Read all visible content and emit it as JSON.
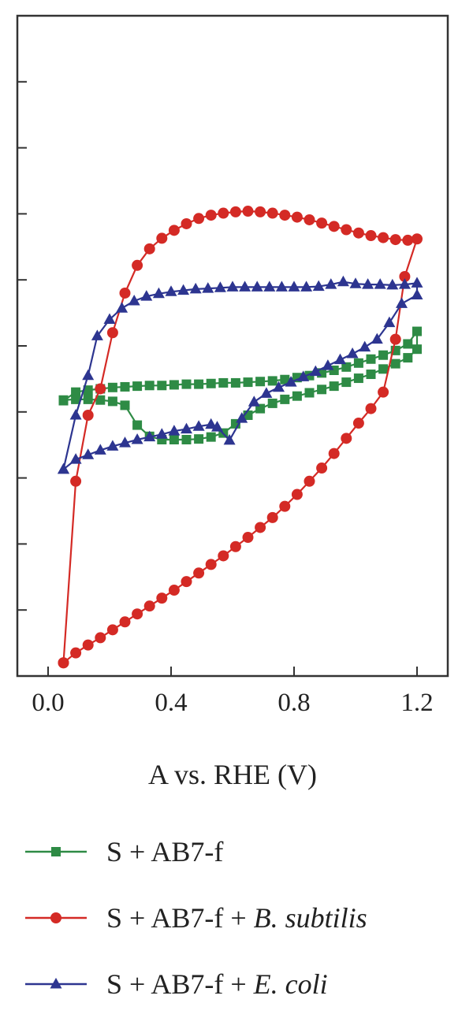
{
  "chart_data": {
    "type": "line",
    "title": "",
    "xlabel": "A vs. RHE (V)",
    "ylabel": "",
    "xlim": [
      -0.1,
      1.3
    ],
    "ylim": [
      0,
      10
    ],
    "xticks": [
      0.0,
      0.4,
      0.8,
      1.2
    ],
    "xtick_labels": [
      "0.0",
      "0.4",
      "0.8",
      "1.2"
    ],
    "yticks": [
      1,
      2,
      3,
      4,
      5,
      6,
      7,
      8,
      9
    ],
    "ytick_labels_visible": false,
    "grid": false,
    "legend_position": "bottom",
    "series": [
      {
        "name": "S + AB7-f",
        "name_parts": [
          {
            "text": "S + AB7-f",
            "italic": false
          }
        ],
        "color": "#2e8b45",
        "marker": "square",
        "points": [
          [
            0.05,
            4.17
          ],
          [
            0.09,
            4.3
          ],
          [
            0.13,
            4.33
          ],
          [
            0.17,
            4.35
          ],
          [
            0.21,
            4.37
          ],
          [
            0.25,
            4.38
          ],
          [
            0.29,
            4.39
          ],
          [
            0.33,
            4.4
          ],
          [
            0.37,
            4.4
          ],
          [
            0.41,
            4.41
          ],
          [
            0.45,
            4.42
          ],
          [
            0.49,
            4.42
          ],
          [
            0.53,
            4.43
          ],
          [
            0.57,
            4.44
          ],
          [
            0.61,
            4.44
          ],
          [
            0.65,
            4.45
          ],
          [
            0.69,
            4.46
          ],
          [
            0.73,
            4.47
          ],
          [
            0.77,
            4.49
          ],
          [
            0.81,
            4.52
          ],
          [
            0.85,
            4.55
          ],
          [
            0.89,
            4.59
          ],
          [
            0.93,
            4.63
          ],
          [
            0.97,
            4.68
          ],
          [
            1.01,
            4.74
          ],
          [
            1.05,
            4.8
          ],
          [
            1.09,
            4.86
          ],
          [
            1.13,
            4.93
          ],
          [
            1.17,
            5.03
          ],
          [
            1.2,
            5.22
          ],
          [
            1.2,
            4.95
          ],
          [
            1.17,
            4.82
          ],
          [
            1.13,
            4.73
          ],
          [
            1.09,
            4.65
          ],
          [
            1.05,
            4.57
          ],
          [
            1.01,
            4.51
          ],
          [
            0.97,
            4.45
          ],
          [
            0.93,
            4.39
          ],
          [
            0.89,
            4.34
          ],
          [
            0.85,
            4.29
          ],
          [
            0.81,
            4.24
          ],
          [
            0.77,
            4.19
          ],
          [
            0.73,
            4.13
          ],
          [
            0.69,
            4.05
          ],
          [
            0.65,
            3.95
          ],
          [
            0.61,
            3.82
          ],
          [
            0.57,
            3.68
          ],
          [
            0.53,
            3.62
          ],
          [
            0.49,
            3.59
          ],
          [
            0.45,
            3.58
          ],
          [
            0.41,
            3.58
          ],
          [
            0.37,
            3.58
          ],
          [
            0.33,
            3.63
          ],
          [
            0.29,
            3.8
          ],
          [
            0.25,
            4.1
          ],
          [
            0.21,
            4.16
          ],
          [
            0.17,
            4.18
          ],
          [
            0.13,
            4.19
          ],
          [
            0.09,
            4.19
          ],
          [
            0.05,
            4.18
          ]
        ]
      },
      {
        "name": "S + AB7-f + B. subtilis",
        "name_parts": [
          {
            "text": "S + AB7-f + ",
            "italic": false
          },
          {
            "text": "B. subtilis",
            "italic": true
          }
        ],
        "color": "#d42a25",
        "marker": "circle",
        "points": [
          [
            0.05,
            0.2
          ],
          [
            0.09,
            0.35
          ],
          [
            0.13,
            0.47
          ],
          [
            0.17,
            0.58
          ],
          [
            0.21,
            0.7
          ],
          [
            0.25,
            0.82
          ],
          [
            0.29,
            0.94
          ],
          [
            0.33,
            1.06
          ],
          [
            0.37,
            1.18
          ],
          [
            0.41,
            1.3
          ],
          [
            0.45,
            1.43
          ],
          [
            0.49,
            1.56
          ],
          [
            0.53,
            1.69
          ],
          [
            0.57,
            1.82
          ],
          [
            0.61,
            1.96
          ],
          [
            0.65,
            2.1
          ],
          [
            0.69,
            2.25
          ],
          [
            0.73,
            2.4
          ],
          [
            0.77,
            2.57
          ],
          [
            0.81,
            2.75
          ],
          [
            0.85,
            2.95
          ],
          [
            0.89,
            3.15
          ],
          [
            0.93,
            3.37
          ],
          [
            0.97,
            3.6
          ],
          [
            1.01,
            3.83
          ],
          [
            1.05,
            4.05
          ],
          [
            1.09,
            4.3
          ],
          [
            1.13,
            5.1
          ],
          [
            1.16,
            6.05
          ],
          [
            1.2,
            6.62
          ],
          [
            1.17,
            6.6
          ],
          [
            1.13,
            6.61
          ],
          [
            1.09,
            6.64
          ],
          [
            1.05,
            6.67
          ],
          [
            1.01,
            6.71
          ],
          [
            0.97,
            6.76
          ],
          [
            0.93,
            6.81
          ],
          [
            0.89,
            6.86
          ],
          [
            0.85,
            6.91
          ],
          [
            0.81,
            6.95
          ],
          [
            0.77,
            6.98
          ],
          [
            0.73,
            7.01
          ],
          [
            0.69,
            7.03
          ],
          [
            0.65,
            7.04
          ],
          [
            0.61,
            7.03
          ],
          [
            0.57,
            7.01
          ],
          [
            0.53,
            6.98
          ],
          [
            0.49,
            6.93
          ],
          [
            0.45,
            6.85
          ],
          [
            0.41,
            6.75
          ],
          [
            0.37,
            6.63
          ],
          [
            0.33,
            6.47
          ],
          [
            0.29,
            6.22
          ],
          [
            0.25,
            5.8
          ],
          [
            0.21,
            5.2
          ],
          [
            0.17,
            4.35
          ],
          [
            0.13,
            3.95
          ],
          [
            0.09,
            2.95
          ],
          [
            0.05,
            0.2
          ]
        ]
      },
      {
        "name": "S + AB7-f + E. coli",
        "name_parts": [
          {
            "text": "S + AB7-f + ",
            "italic": false
          },
          {
            "text": "E. coli",
            "italic": true
          }
        ],
        "color": "#2d3590",
        "marker": "triangle",
        "points": [
          [
            0.05,
            3.13
          ],
          [
            0.09,
            3.28
          ],
          [
            0.13,
            3.35
          ],
          [
            0.17,
            3.42
          ],
          [
            0.21,
            3.48
          ],
          [
            0.25,
            3.53
          ],
          [
            0.29,
            3.58
          ],
          [
            0.33,
            3.62
          ],
          [
            0.37,
            3.66
          ],
          [
            0.41,
            3.71
          ],
          [
            0.45,
            3.74
          ],
          [
            0.49,
            3.78
          ],
          [
            0.53,
            3.81
          ],
          [
            0.55,
            3.77
          ],
          [
            0.59,
            3.57
          ],
          [
            0.63,
            3.9
          ],
          [
            0.67,
            4.15
          ],
          [
            0.71,
            4.28
          ],
          [
            0.75,
            4.37
          ],
          [
            0.79,
            4.45
          ],
          [
            0.83,
            4.53
          ],
          [
            0.87,
            4.61
          ],
          [
            0.91,
            4.7
          ],
          [
            0.95,
            4.79
          ],
          [
            0.99,
            4.88
          ],
          [
            1.03,
            4.98
          ],
          [
            1.07,
            5.1
          ],
          [
            1.11,
            5.35
          ],
          [
            1.15,
            5.64
          ],
          [
            1.2,
            5.77
          ],
          [
            1.2,
            5.95
          ],
          [
            1.16,
            5.93
          ],
          [
            1.12,
            5.92
          ],
          [
            1.08,
            5.93
          ],
          [
            1.04,
            5.93
          ],
          [
            1.0,
            5.94
          ],
          [
            0.96,
            5.97
          ],
          [
            0.92,
            5.93
          ],
          [
            0.88,
            5.9
          ],
          [
            0.84,
            5.89
          ],
          [
            0.8,
            5.89
          ],
          [
            0.76,
            5.89
          ],
          [
            0.72,
            5.89
          ],
          [
            0.68,
            5.89
          ],
          [
            0.64,
            5.89
          ],
          [
            0.6,
            5.89
          ],
          [
            0.56,
            5.88
          ],
          [
            0.52,
            5.87
          ],
          [
            0.48,
            5.86
          ],
          [
            0.44,
            5.84
          ],
          [
            0.4,
            5.82
          ],
          [
            0.36,
            5.79
          ],
          [
            0.32,
            5.75
          ],
          [
            0.28,
            5.68
          ],
          [
            0.24,
            5.57
          ],
          [
            0.2,
            5.4
          ],
          [
            0.16,
            5.15
          ],
          [
            0.13,
            4.55
          ],
          [
            0.09,
            3.95
          ],
          [
            0.05,
            3.13
          ]
        ]
      }
    ]
  }
}
